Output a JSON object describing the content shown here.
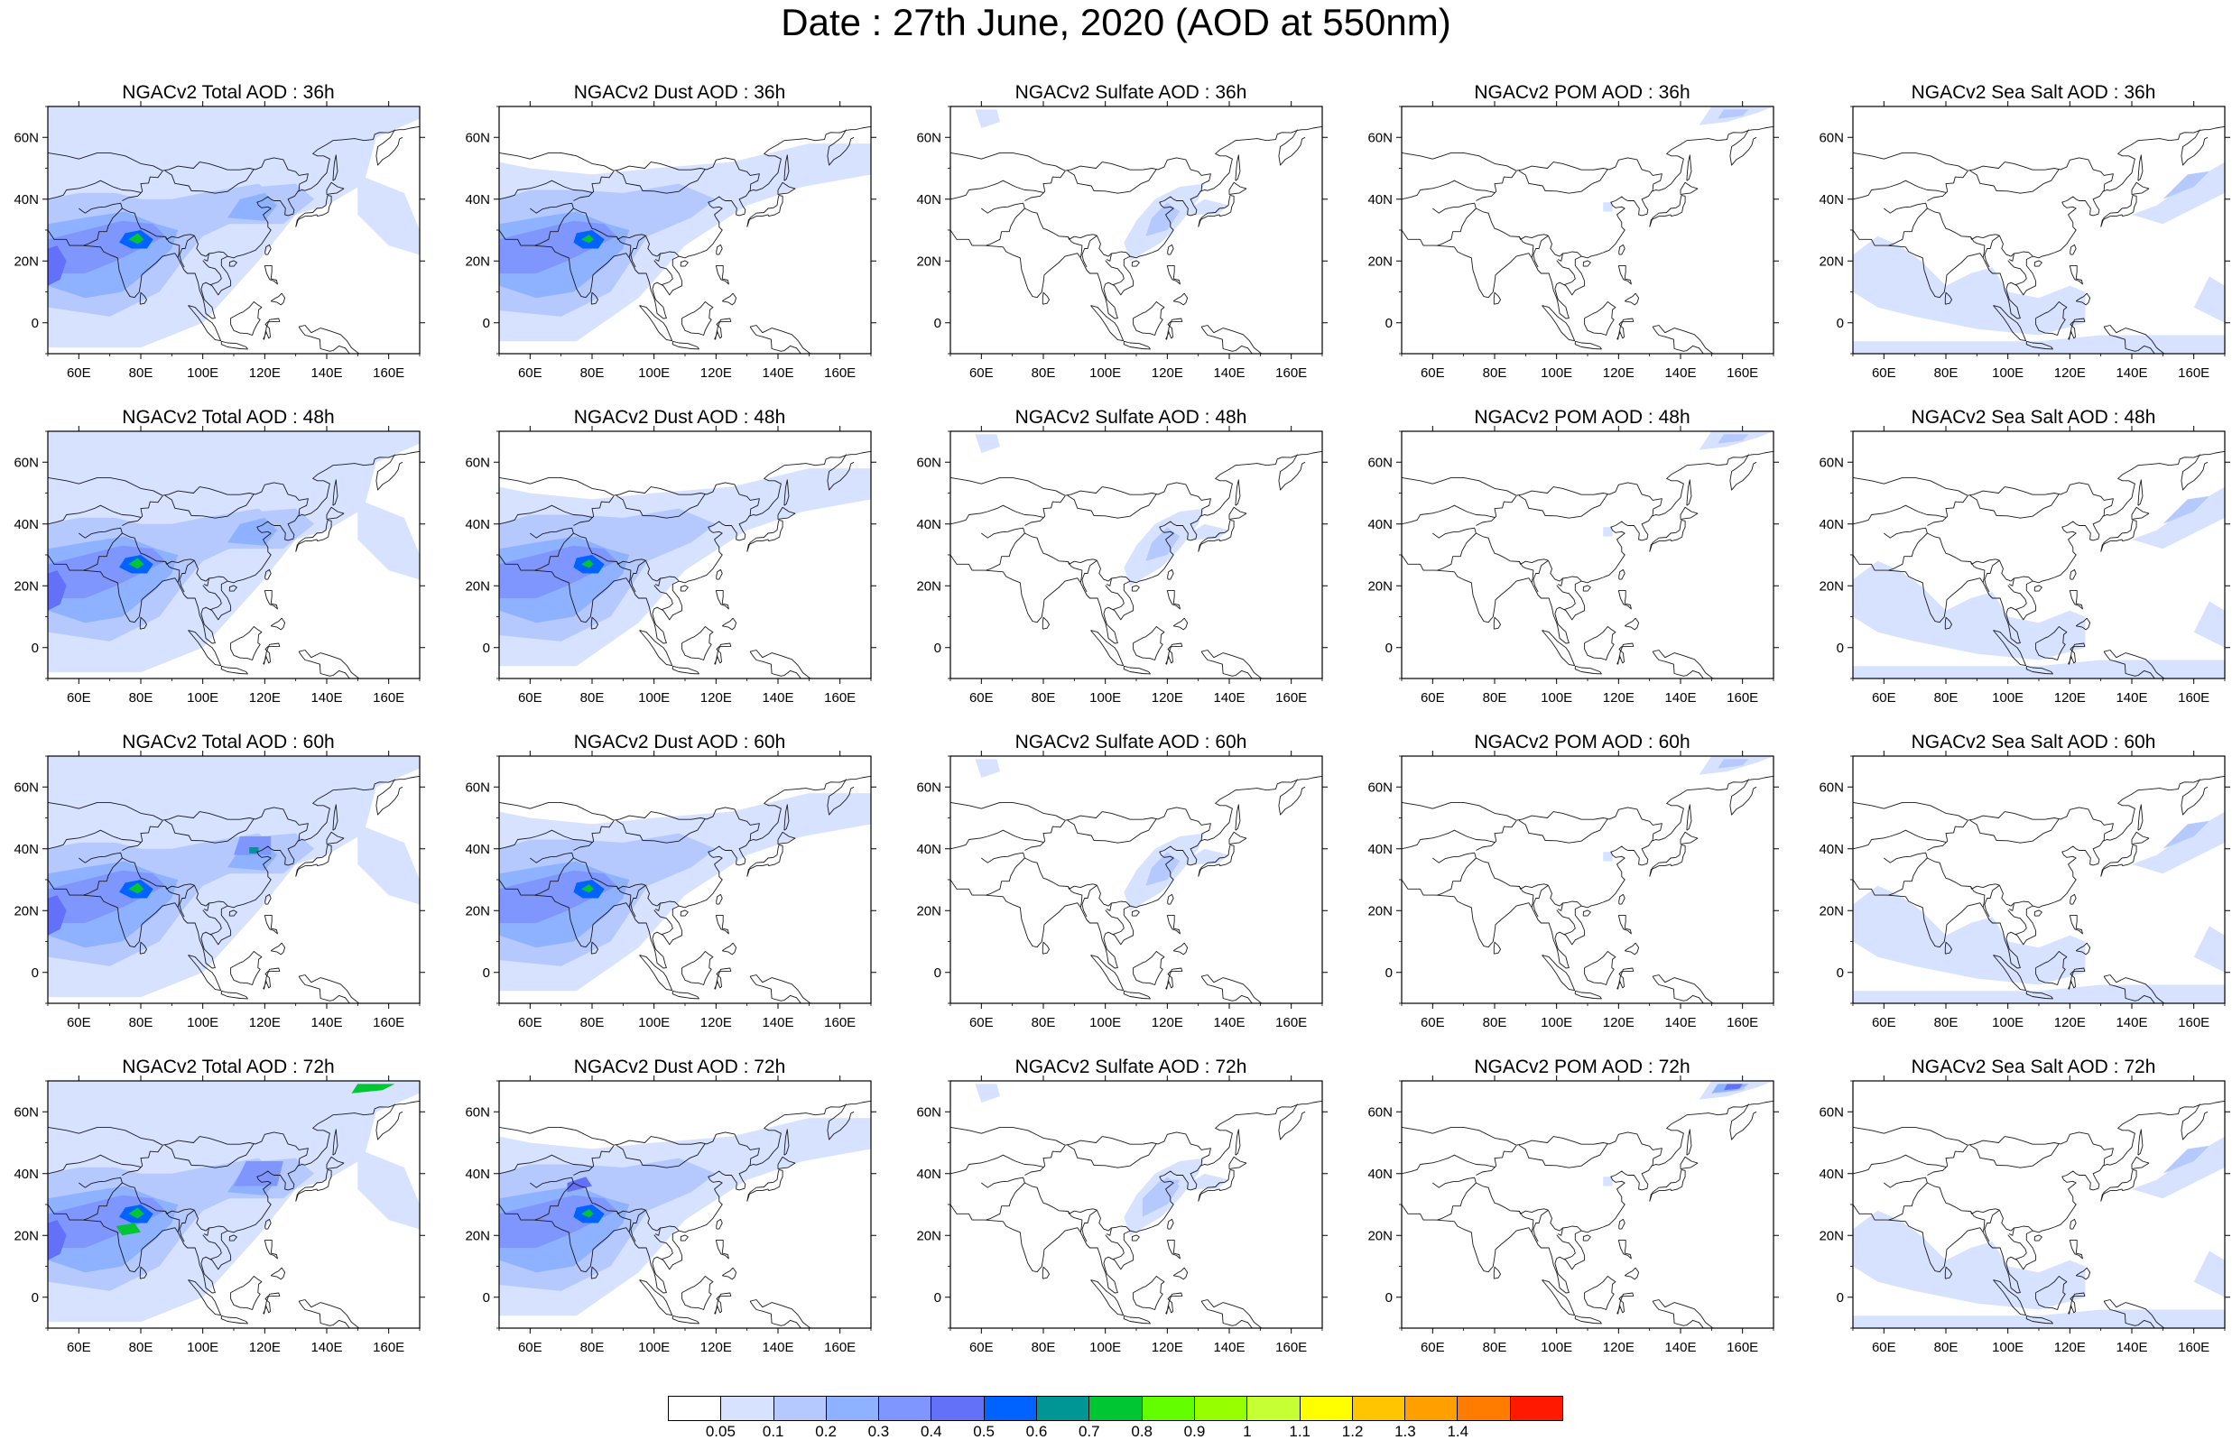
{
  "title": "Date : 27th June, 2020 (AOD at 550nm)",
  "panels": [
    [
      "NGACv2 Total AOD : 36h",
      "NGACv2 Dust AOD : 36h",
      "NGACv2 Sulfate AOD : 36h",
      "NGACv2 POM AOD : 36h",
      "NGACv2 Sea Salt AOD : 36h"
    ],
    [
      "NGACv2 Total AOD : 48h",
      "NGACv2 Dust AOD : 48h",
      "NGACv2 Sulfate AOD : 48h",
      "NGACv2 POM AOD : 48h",
      "NGACv2 Sea Salt AOD : 48h"
    ],
    [
      "NGACv2 Total AOD : 60h",
      "NGACv2 Dust AOD : 60h",
      "NGACv2 Sulfate AOD : 60h",
      "NGACv2 POM AOD : 60h",
      "NGACv2 Sea Salt AOD : 60h"
    ],
    [
      "NGACv2 Total AOD : 72h",
      "NGACv2 Dust AOD : 72h",
      "NGACv2 Sulfate AOD : 72h",
      "NGACv2 POM AOD : 72h",
      "NGACv2 Sea Salt  AOD : 72h"
    ]
  ],
  "lat_ticks": [
    "60N",
    "40N",
    "20N",
    "0"
  ],
  "lon_ticks": [
    "60E",
    "80E",
    "100E",
    "120E",
    "140E",
    "160E"
  ],
  "map_extent": {
    "lon": [
      50,
      170
    ],
    "lat": [
      -10,
      70
    ]
  },
  "colorbar": {
    "labels": [
      "0.05",
      "0.1",
      "0.2",
      "0.3",
      "0.4",
      "0.5",
      "0.6",
      "0.7",
      "0.8",
      "0.9",
      "1",
      "1.1",
      "1.2",
      "1.3",
      "1.4"
    ],
    "colors": [
      "#ffffff",
      "#d6e2ff",
      "#b5c9ff",
      "#8eb2ff",
      "#7f96ff",
      "#6370f8",
      "#0063ff",
      "#009696",
      "#00c633",
      "#63ff00",
      "#96ff00",
      "#c6ff33",
      "#ffff00",
      "#ffc600",
      "#ffa000",
      "#ff7c00",
      "#ff1900"
    ]
  }
}
